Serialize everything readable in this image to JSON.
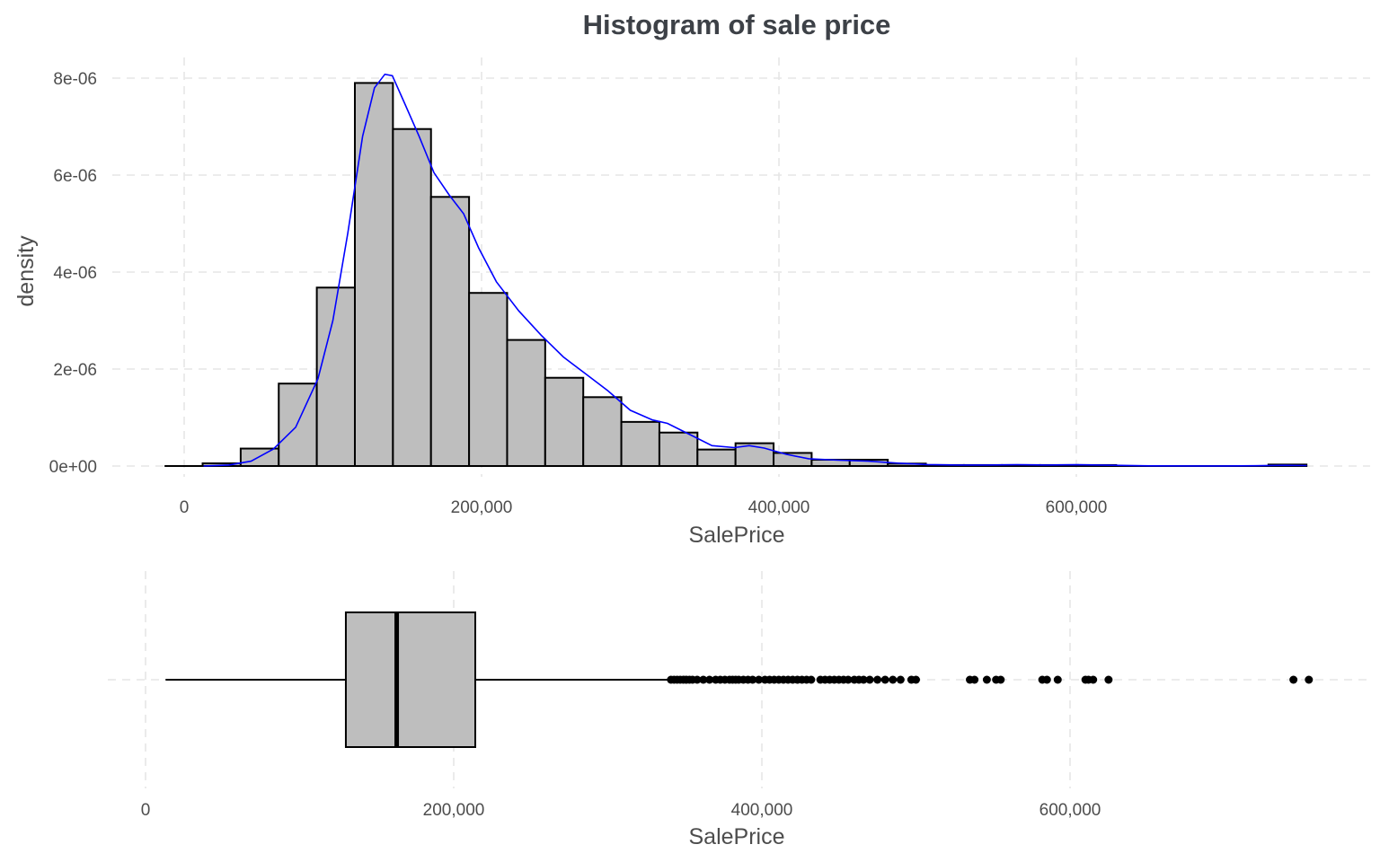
{
  "chart_data": [
    {
      "type": "histogram",
      "title": "Histogram of sale price",
      "xlabel": "SalePrice",
      "ylabel": "density",
      "xlim": [
        -15000,
        760000
      ],
      "ylim": [
        0,
        8.2e-06
      ],
      "x_ticks": [
        {
          "value": 0,
          "label": "0"
        },
        {
          "value": 200000,
          "label": "200,000"
        },
        {
          "value": 400000,
          "label": "400,000"
        },
        {
          "value": 600000,
          "label": "600,000"
        }
      ],
      "y_ticks": [
        {
          "value": 0,
          "label": "0e+00"
        },
        {
          "value": 2e-06,
          "label": "2e-06"
        },
        {
          "value": 4e-06,
          "label": "4e-06"
        },
        {
          "value": 6e-06,
          "label": "6e-06"
        },
        {
          "value": 8e-06,
          "label": "8e-06"
        }
      ],
      "grid": true,
      "bin_width": 25600,
      "bins": [
        {
          "x0": -13200,
          "x1": 12400,
          "density": 0
        },
        {
          "x0": 12400,
          "x1": 38000,
          "density": 5.5e-08
        },
        {
          "x0": 38000,
          "x1": 63600,
          "density": 3.6e-07
        },
        {
          "x0": 63600,
          "x1": 89200,
          "density": 1.7e-06
        },
        {
          "x0": 89200,
          "x1": 114800,
          "density": 3.68e-06
        },
        {
          "x0": 114800,
          "x1": 140400,
          "density": 7.9e-06
        },
        {
          "x0": 140400,
          "x1": 166000,
          "density": 6.95e-06
        },
        {
          "x0": 166000,
          "x1": 191600,
          "density": 5.55e-06
        },
        {
          "x0": 191600,
          "x1": 217200,
          "density": 3.57e-06
        },
        {
          "x0": 217200,
          "x1": 242800,
          "density": 2.6e-06
        },
        {
          "x0": 242800,
          "x1": 268400,
          "density": 1.82e-06
        },
        {
          "x0": 268400,
          "x1": 294000,
          "density": 1.42e-06
        },
        {
          "x0": 294000,
          "x1": 319600,
          "density": 9.1e-07
        },
        {
          "x0": 319600,
          "x1": 345200,
          "density": 6.9e-07
        },
        {
          "x0": 345200,
          "x1": 370800,
          "density": 3.4e-07
        },
        {
          "x0": 370800,
          "x1": 396400,
          "density": 4.7e-07
        },
        {
          "x0": 396400,
          "x1": 422000,
          "density": 2.7e-07
        },
        {
          "x0": 422000,
          "x1": 447600,
          "density": 1.3e-07
        },
        {
          "x0": 447600,
          "x1": 473200,
          "density": 1.3e-07
        },
        {
          "x0": 473200,
          "x1": 498800,
          "density": 5e-08
        },
        {
          "x0": 498800,
          "x1": 524400,
          "density": 2e-08
        },
        {
          "x0": 524400,
          "x1": 550000,
          "density": 2e-08
        },
        {
          "x0": 550000,
          "x1": 575600,
          "density": 2e-08
        },
        {
          "x0": 575600,
          "x1": 601200,
          "density": 2e-08
        },
        {
          "x0": 601200,
          "x1": 626800,
          "density": 2e-08
        },
        {
          "x0": 626800,
          "x1": 652400,
          "density": 0
        },
        {
          "x0": 652400,
          "x1": 678000,
          "density": 0
        },
        {
          "x0": 678000,
          "x1": 703600,
          "density": 0
        },
        {
          "x0": 703600,
          "x1": 729200,
          "density": 0
        },
        {
          "x0": 729200,
          "x1": 754800,
          "density": 3e-08
        }
      ],
      "density_curve": {
        "color": "#0000ff",
        "points": [
          [
            13000,
            0
          ],
          [
            30000,
            2e-08
          ],
          [
            45000,
            1e-07
          ],
          [
            60000,
            3.5e-07
          ],
          [
            75000,
            8e-07
          ],
          [
            90000,
            1.8e-06
          ],
          [
            100000,
            3e-06
          ],
          [
            110000,
            4.8e-06
          ],
          [
            120000,
            6.8e-06
          ],
          [
            128000,
            7.8e-06
          ],
          [
            135000,
            8.08e-06
          ],
          [
            140000,
            8.05e-06
          ],
          [
            148000,
            7.5e-06
          ],
          [
            158000,
            6.8e-06
          ],
          [
            168000,
            6.05e-06
          ],
          [
            178000,
            5.6e-06
          ],
          [
            188000,
            5.2e-06
          ],
          [
            198000,
            4.5e-06
          ],
          [
            210000,
            3.8e-06
          ],
          [
            225000,
            3.2e-06
          ],
          [
            240000,
            2.7e-06
          ],
          [
            255000,
            2.25e-06
          ],
          [
            270000,
            1.9e-06
          ],
          [
            285000,
            1.55e-06
          ],
          [
            300000,
            1.15e-06
          ],
          [
            315000,
            9.5e-07
          ],
          [
            325000,
            8.8e-07
          ],
          [
            340000,
            6.5e-07
          ],
          [
            355000,
            4.2e-07
          ],
          [
            370000,
            3.8e-07
          ],
          [
            380000,
            4.2e-07
          ],
          [
            390000,
            3.7e-07
          ],
          [
            405000,
            2.4e-07
          ],
          [
            420000,
            1.5e-07
          ],
          [
            440000,
            1.2e-07
          ],
          [
            460000,
            1e-07
          ],
          [
            480000,
            6e-08
          ],
          [
            500000,
            3e-08
          ],
          [
            520000,
            2e-08
          ],
          [
            540000,
            2e-08
          ],
          [
            560000,
            2.5e-08
          ],
          [
            580000,
            2e-08
          ],
          [
            600000,
            2.5e-08
          ],
          [
            625000,
            1.5e-08
          ],
          [
            650000,
            3e-09
          ],
          [
            680000,
            1e-09
          ],
          [
            700000,
            2e-09
          ],
          [
            720000,
            6e-09
          ],
          [
            740000,
            1.5e-08
          ],
          [
            755000,
            1e-08
          ]
        ]
      }
    },
    {
      "type": "boxplot",
      "xlabel": "SalePrice",
      "xlim": [
        -15000,
        760000
      ],
      "x_ticks": [
        {
          "value": 0,
          "label": "0"
        },
        {
          "value": 200000,
          "label": "200,000"
        },
        {
          "value": 400000,
          "label": "400,000"
        },
        {
          "value": 600000,
          "label": "600,000"
        }
      ],
      "grid": true,
      "box": {
        "min": 13000,
        "q1": 130000,
        "median": 163000,
        "q3": 214000,
        "whisker_max": 340000
      },
      "outliers": [
        341000,
        343000,
        345000,
        347000,
        349000,
        351000,
        353000,
        355000,
        358000,
        362000,
        366000,
        370000,
        373000,
        376000,
        379000,
        381000,
        383000,
        385000,
        388000,
        391000,
        394000,
        398000,
        402000,
        405000,
        408000,
        411000,
        414000,
        417000,
        420000,
        423000,
        426000,
        429000,
        432000,
        438000,
        441000,
        444000,
        447000,
        450000,
        453000,
        456000,
        460000,
        463000,
        466000,
        470000,
        475000,
        480000,
        485000,
        490000,
        497000,
        500000,
        535000,
        538000,
        546000,
        552000,
        555000,
        582000,
        585000,
        592000,
        610000,
        612000,
        615000,
        625000,
        745000,
        755000
      ]
    }
  ]
}
